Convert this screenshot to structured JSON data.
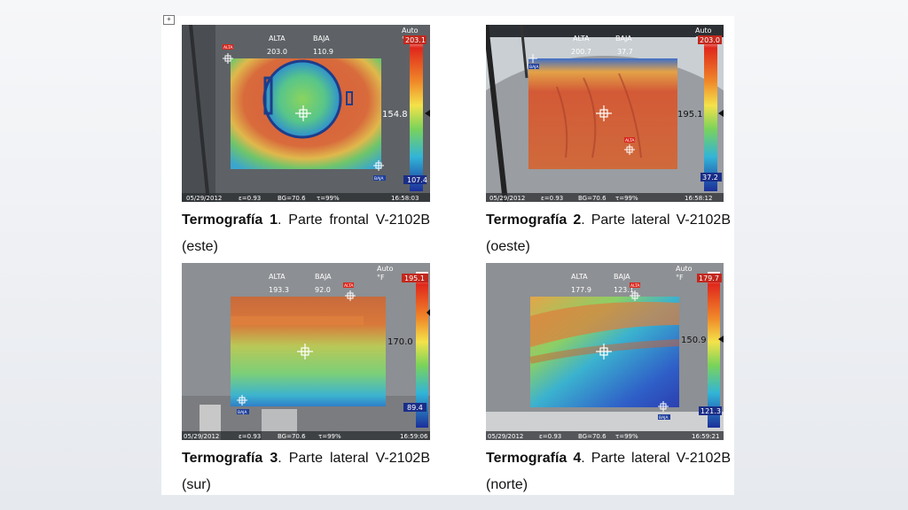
{
  "handle_glyph": "+",
  "figures": [
    {
      "caption_prefix": "Termografía",
      "caption_num": "1",
      "caption_text": "Parte frontal V-2102B (este)",
      "alta_label": "ALTA",
      "baja_label": "BAJA",
      "alta_value": "203.0",
      "baja_value": "110.9",
      "mode": "Auto",
      "unit": "°F",
      "scale_max": "203.1",
      "scale_mid": "154.8",
      "scale_min": "107.4",
      "date": "05/29/2012",
      "emissivity": "ε=0.93",
      "bg": "BG=70.6",
      "tau": "τ=99%",
      "time": "16:58:03",
      "marker_alta": "ALTA",
      "marker_baja": "BAJA"
    },
    {
      "caption_prefix": "Termografía",
      "caption_num": "2",
      "caption_text": "Parte lateral V-2102B (oeste)",
      "alta_label": "ALTA",
      "baja_label": "BAJA",
      "alta_value": "200.7",
      "baja_value": "37.7",
      "mode": "Auto",
      "unit": "°F",
      "scale_max": "203.0",
      "scale_mid": "195.1",
      "scale_min": "37.2",
      "date": "05/29/2012",
      "emissivity": "ε=0.93",
      "bg": "BG=70.6",
      "tau": "τ=99%",
      "time": "16:58:12",
      "marker_alta": "ALTA",
      "marker_baja": "BAJA"
    },
    {
      "caption_prefix": "Termografía",
      "caption_num": "3",
      "caption_text": "Parte lateral V-2102B (sur)",
      "alta_label": "ALTA",
      "baja_label": "BAJA",
      "alta_value": "193.3",
      "baja_value": "92.0",
      "mode": "Auto",
      "unit": "°F",
      "scale_max": "195.1",
      "scale_mid": "170.0",
      "scale_min": "89.4",
      "date": "05/29/2012",
      "emissivity": "ε=0.93",
      "bg": "BG=70.6",
      "tau": "τ=99%",
      "time": "16:59:06",
      "marker_alta": "ALTA",
      "marker_baja": "BAJA"
    },
    {
      "caption_prefix": "Termografía",
      "caption_num": "4",
      "caption_text": "Parte lateral V-2102B (norte)",
      "alta_label": "ALTA",
      "baja_label": "BAJA",
      "alta_value": "177.9",
      "baja_value": "123.1",
      "mode": "Auto",
      "unit": "°F",
      "scale_max": "179.7",
      "scale_mid": "150.9",
      "scale_min": "121.3",
      "date": "05/29/2012",
      "emissivity": "ε=0.93",
      "bg": "BG=70.6",
      "tau": "τ=99%",
      "time": "16:59:21",
      "marker_alta": "ALTA",
      "marker_baja": "BAJA"
    }
  ],
  "colors": {
    "hot": "#d2462a",
    "warm": "#e7893a",
    "mid": "#8fd25a",
    "cool": "#3fb7d6",
    "cold": "#2a4fc0",
    "marker_red": "#d9261c",
    "marker_blue": "#1f3f9c"
  }
}
